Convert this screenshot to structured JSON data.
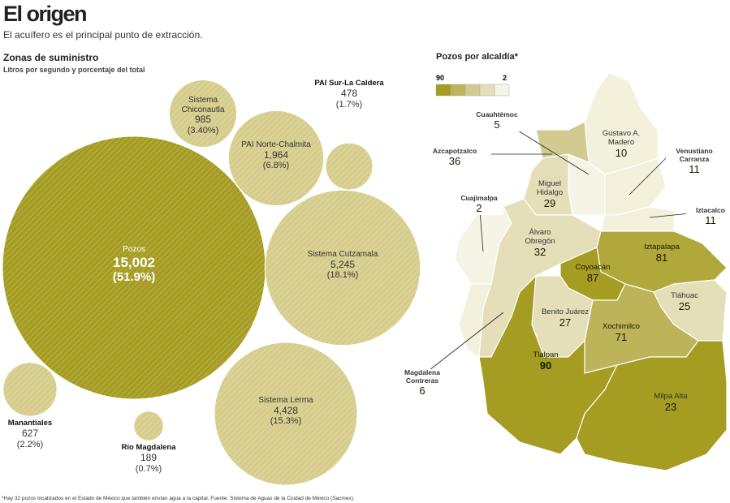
{
  "title": "El origen",
  "subtitle": "El acuífero es el principal punto de extracción.",
  "footnote": "*Hay 32 pozos localizados en el Estado de México que también envían agua a la capital. Fuente: Sistema de Aguas de la Ciudad de México (Sacmex).",
  "chart_data": [
    {
      "type": "bubble",
      "title": "Zonas de suministro",
      "subtitle": "Litros por segundo y porcentaje del total",
      "categories": [
        "Pozos",
        "Sistema Chiconautla",
        "PAI Sur-La Caldera",
        "PAI Norte-Chalmita",
        "Sistema Cutzamala",
        "Sistema Lerma",
        "Manantiales",
        "Río Magdalena"
      ],
      "values": [
        15002,
        985,
        478,
        1964,
        5245,
        4428,
        627,
        189
      ],
      "value_labels": [
        "15,002",
        "985",
        "478",
        "1,964",
        "5,245",
        "4,428",
        "627",
        "189"
      ],
      "shares": [
        51.9,
        3.4,
        1.7,
        6.8,
        18.1,
        15.3,
        2.2,
        0.7
      ],
      "share_labels": [
        "(51.9%)",
        "(3.40%)",
        "(1.7%)",
        "(6.8%)",
        "(18.1%)",
        "(15.3%)",
        "(2.2%)",
        "(0.7%)"
      ],
      "colors": [
        "#a59c22",
        "#d6cd8c",
        "#d6cd8c",
        "#d6cd8c",
        "#d6cd8c",
        "#d6cd8c",
        "#d6cd8c",
        "#d6cd8c"
      ]
    },
    {
      "type": "choropleth",
      "title": "Pozos por alcaldía*",
      "legend_ticks": [
        90,
        2
      ],
      "legend_colors": [
        "#a59c22",
        "#bdb45a",
        "#d2ca8e",
        "#e4dfb8",
        "#f6f4e6"
      ],
      "regions": [
        {
          "name": "Cuauhtémoc",
          "value": 5,
          "color": "#f6f4e6"
        },
        {
          "name": "Azcapotzalco",
          "value": 36,
          "color": "#d2ca8e"
        },
        {
          "name": "Gustavo A. Madero",
          "value": 10,
          "color": "#f3f0dc"
        },
        {
          "name": "Venustiano Carranza",
          "value": 11,
          "color": "#f3f0dc"
        },
        {
          "name": "Iztacalco",
          "value": 11,
          "color": "#f3f0dc"
        },
        {
          "name": "Cuajimalpa",
          "value": 2,
          "color": "#f6f4e6"
        },
        {
          "name": "Miguel Hidalgo",
          "value": 29,
          "color": "#e4dfb8"
        },
        {
          "name": "Álvaro Obregón",
          "value": 32,
          "color": "#e4dfb8"
        },
        {
          "name": "Iztapalapa",
          "value": 81,
          "color": "#b0a83a"
        },
        {
          "name": "Coyoacán",
          "value": 87,
          "color": "#a59c22"
        },
        {
          "name": "Tláhuac",
          "value": 25,
          "color": "#e4dfb8"
        },
        {
          "name": "Benito Juárez",
          "value": 27,
          "color": "#e4dfb8"
        },
        {
          "name": "Xochimilco",
          "value": 71,
          "color": "#bdb45a"
        },
        {
          "name": "Tlalpan",
          "value": 90,
          "color": "#a59c22"
        },
        {
          "name": "Magdalena Contreras",
          "value": 6,
          "color": "#f3f0dc"
        },
        {
          "name": "Milpa Alta",
          "value": 23,
          "color": "#a59c22"
        }
      ]
    }
  ]
}
